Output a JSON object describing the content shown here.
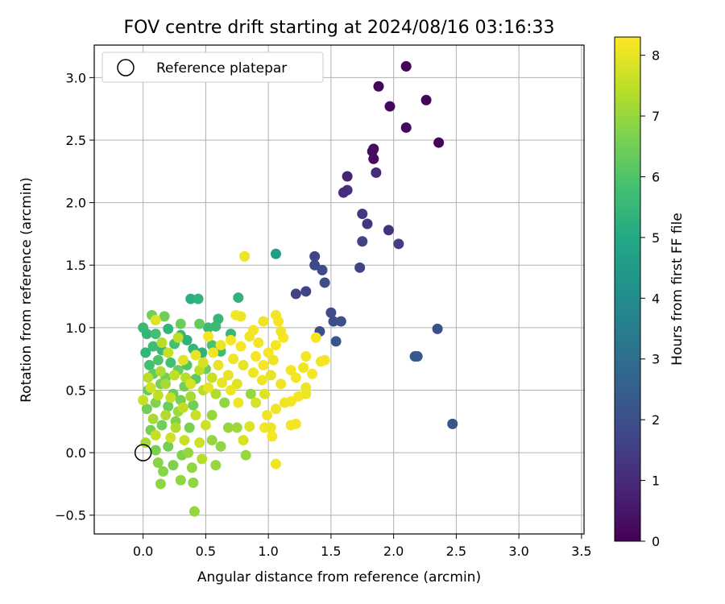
{
  "chart_data": {
    "type": "scatter",
    "title": "FOV centre drift starting at 2024/08/16 03:16:33",
    "xlabel": "Angular distance from reference (arcmin)",
    "ylabel": "Rotation from reference (arcmin)",
    "xlim": [
      -0.39,
      3.52
    ],
    "ylim": [
      -0.65,
      3.26
    ],
    "xticks": [
      0.0,
      0.5,
      1.0,
      1.5,
      2.0,
      2.5,
      3.0,
      3.5
    ],
    "xtick_labels": [
      "0.0",
      "0.5",
      "1.0",
      "1.5",
      "2.0",
      "2.5",
      "3.0",
      "3.5"
    ],
    "yticks": [
      -0.5,
      0.0,
      0.5,
      1.0,
      1.5,
      2.0,
      2.5,
      3.0
    ],
    "ytick_labels": [
      "−0.5",
      "0.0",
      "0.5",
      "1.0",
      "1.5",
      "2.0",
      "2.5",
      "3.0"
    ],
    "grid": true,
    "legend": {
      "position": "top-left",
      "entries": [
        "Reference platepar"
      ]
    },
    "reference_point": {
      "x": 0.0,
      "y": 0.0,
      "marker": "open-circle"
    },
    "colorbar": {
      "label": "Hours from first FF file",
      "range": [
        0,
        8.3
      ],
      "ticks": [
        0,
        1,
        2,
        3,
        4,
        5,
        6,
        7,
        8
      ],
      "tick_labels": [
        "0",
        "1",
        "2",
        "3",
        "4",
        "5",
        "6",
        "7",
        "8"
      ],
      "colormap": "viridis",
      "stops": [
        "#440154",
        "#482475",
        "#414487",
        "#355f8d",
        "#2a788e",
        "#21918c",
        "#22a884",
        "#44bf70",
        "#7ad151",
        "#bddf26",
        "#fde725"
      ]
    },
    "points": [
      {
        "x": 2.1,
        "y": 3.09,
        "c": 0.1
      },
      {
        "x": 1.88,
        "y": 2.93,
        "c": 0.15
      },
      {
        "x": 1.97,
        "y": 2.77,
        "c": 0.2
      },
      {
        "x": 2.26,
        "y": 2.82,
        "c": 0.1
      },
      {
        "x": 2.1,
        "y": 2.6,
        "c": 0.2
      },
      {
        "x": 2.36,
        "y": 2.48,
        "c": 0.1
      },
      {
        "x": 1.84,
        "y": 2.43,
        "c": 0.25
      },
      {
        "x": 1.83,
        "y": 2.41,
        "c": 0.3
      },
      {
        "x": 1.84,
        "y": 2.35,
        "c": 0.3
      },
      {
        "x": 1.63,
        "y": 2.21,
        "c": 0.8
      },
      {
        "x": 1.86,
        "y": 2.24,
        "c": 1.0
      },
      {
        "x": 1.63,
        "y": 2.1,
        "c": 1.2
      },
      {
        "x": 1.6,
        "y": 2.08,
        "c": 1.1
      },
      {
        "x": 1.75,
        "y": 1.91,
        "c": 1.3
      },
      {
        "x": 1.79,
        "y": 1.83,
        "c": 1.3
      },
      {
        "x": 1.96,
        "y": 1.78,
        "c": 1.2
      },
      {
        "x": 1.75,
        "y": 1.69,
        "c": 1.6
      },
      {
        "x": 2.04,
        "y": 1.67,
        "c": 1.5
      },
      {
        "x": 1.37,
        "y": 1.57,
        "c": 1.7
      },
      {
        "x": 1.37,
        "y": 1.5,
        "c": 1.8
      },
      {
        "x": 1.73,
        "y": 1.48,
        "c": 1.6
      },
      {
        "x": 1.43,
        "y": 1.46,
        "c": 1.9
      },
      {
        "x": 1.45,
        "y": 1.36,
        "c": 1.9
      },
      {
        "x": 1.3,
        "y": 1.29,
        "c": 1.7
      },
      {
        "x": 1.22,
        "y": 1.27,
        "c": 1.6
      },
      {
        "x": 1.5,
        "y": 1.12,
        "c": 1.9
      },
      {
        "x": 1.52,
        "y": 1.05,
        "c": 2.0
      },
      {
        "x": 1.58,
        "y": 1.05,
        "c": 2.0
      },
      {
        "x": 1.41,
        "y": 0.97,
        "c": 2.0
      },
      {
        "x": 2.35,
        "y": 0.99,
        "c": 2.0
      },
      {
        "x": 1.54,
        "y": 0.89,
        "c": 2.2
      },
      {
        "x": 2.17,
        "y": 0.77,
        "c": 2.3
      },
      {
        "x": 2.19,
        "y": 0.77,
        "c": 2.3
      },
      {
        "x": 2.47,
        "y": 0.23,
        "c": 2.2
      },
      {
        "x": 1.06,
        "y": 1.59,
        "c": 4.6
      },
      {
        "x": 0.76,
        "y": 1.24,
        "c": 5.3
      },
      {
        "x": 0.38,
        "y": 1.23,
        "c": 5.2
      },
      {
        "x": 0.44,
        "y": 1.23,
        "c": 5.4
      },
      {
        "x": 0.6,
        "y": 1.07,
        "c": 5.5
      },
      {
        "x": 0.58,
        "y": 1.01,
        "c": 5.6
      },
      {
        "x": 0.52,
        "y": 1.0,
        "c": 5.6
      },
      {
        "x": 0.0,
        "y": 1.0,
        "c": 5.6
      },
      {
        "x": 0.03,
        "y": 0.95,
        "c": 5.4
      },
      {
        "x": 0.1,
        "y": 0.95,
        "c": 5.8
      },
      {
        "x": 0.2,
        "y": 0.99,
        "c": 5.4
      },
      {
        "x": 0.3,
        "y": 0.94,
        "c": 5.5
      },
      {
        "x": 0.35,
        "y": 0.9,
        "c": 5.3
      },
      {
        "x": 0.02,
        "y": 0.8,
        "c": 5.4
      },
      {
        "x": 0.08,
        "y": 0.85,
        "c": 5.7
      },
      {
        "x": 0.15,
        "y": 0.82,
        "c": 5.6
      },
      {
        "x": 0.25,
        "y": 0.87,
        "c": 5.8
      },
      {
        "x": 0.4,
        "y": 0.83,
        "c": 5.5
      },
      {
        "x": 0.47,
        "y": 0.8,
        "c": 5.3
      },
      {
        "x": 0.55,
        "y": 0.86,
        "c": 5.9
      },
      {
        "x": 0.62,
        "y": 0.81,
        "c": 5.7
      },
      {
        "x": 0.7,
        "y": 0.95,
        "c": 5.5
      },
      {
        "x": 0.05,
        "y": 0.7,
        "c": 5.8
      },
      {
        "x": 0.12,
        "y": 0.74,
        "c": 6.0
      },
      {
        "x": 0.22,
        "y": 0.72,
        "c": 5.8
      },
      {
        "x": 0.35,
        "y": 0.7,
        "c": 6.0
      },
      {
        "x": 0.07,
        "y": 1.1,
        "c": 6.5
      },
      {
        "x": 0.17,
        "y": 1.09,
        "c": 6.5
      },
      {
        "x": 0.3,
        "y": 1.03,
        "c": 6.4
      },
      {
        "x": 0.45,
        "y": 1.03,
        "c": 6.3
      },
      {
        "x": 0.08,
        "y": 0.63,
        "c": 6.3
      },
      {
        "x": 0.18,
        "y": 0.6,
        "c": 6.5
      },
      {
        "x": 0.28,
        "y": 0.66,
        "c": 6.4
      },
      {
        "x": 0.42,
        "y": 0.59,
        "c": 6.2
      },
      {
        "x": 0.5,
        "y": 0.67,
        "c": 6.4
      },
      {
        "x": 0.04,
        "y": 0.5,
        "c": 6.3
      },
      {
        "x": 0.14,
        "y": 0.55,
        "c": 6.6
      },
      {
        "x": 0.24,
        "y": 0.47,
        "c": 6.4
      },
      {
        "x": 0.33,
        "y": 0.53,
        "c": 6.5
      },
      {
        "x": 0.03,
        "y": 0.35,
        "c": 6.5
      },
      {
        "x": 0.1,
        "y": 0.4,
        "c": 6.7
      },
      {
        "x": 0.2,
        "y": 0.37,
        "c": 6.4
      },
      {
        "x": 0.3,
        "y": 0.42,
        "c": 6.6
      },
      {
        "x": 0.4,
        "y": 0.38,
        "c": 6.5
      },
      {
        "x": 0.06,
        "y": 0.18,
        "c": 6.6
      },
      {
        "x": 0.15,
        "y": 0.22,
        "c": 6.5
      },
      {
        "x": 0.26,
        "y": 0.25,
        "c": 6.7
      },
      {
        "x": 0.37,
        "y": 0.2,
        "c": 6.6
      },
      {
        "x": 0.1,
        "y": 0.02,
        "c": 6.6
      },
      {
        "x": 0.2,
        "y": 0.05,
        "c": 6.5
      },
      {
        "x": 0.31,
        "y": -0.02,
        "c": 6.7
      },
      {
        "x": 0.12,
        "y": -0.08,
        "c": 6.8
      },
      {
        "x": 0.24,
        "y": -0.1,
        "c": 6.7
      },
      {
        "x": 0.16,
        "y": -0.15,
        "c": 6.8
      },
      {
        "x": 0.39,
        "y": -0.12,
        "c": 6.9
      },
      {
        "x": 0.14,
        "y": -0.25,
        "c": 6.9
      },
      {
        "x": 0.3,
        "y": -0.22,
        "c": 6.9
      },
      {
        "x": 0.4,
        "y": -0.24,
        "c": 6.9
      },
      {
        "x": 0.41,
        "y": -0.47,
        "c": 7.0
      },
      {
        "x": 0.58,
        "y": -0.1,
        "c": 7.0
      },
      {
        "x": 0.82,
        "y": -0.02,
        "c": 7.0
      },
      {
        "x": 0.55,
        "y": 0.1,
        "c": 7.0
      },
      {
        "x": 0.62,
        "y": 0.05,
        "c": 6.9
      },
      {
        "x": 0.68,
        "y": 0.2,
        "c": 7.0
      },
      {
        "x": 0.75,
        "y": 0.2,
        "c": 7.1
      },
      {
        "x": 0.65,
        "y": 0.4,
        "c": 6.9
      },
      {
        "x": 0.86,
        "y": 0.47,
        "c": 7.0
      },
      {
        "x": 0.55,
        "y": 0.3,
        "c": 7.0
      },
      {
        "x": 0.02,
        "y": 0.08,
        "c": 7.2
      },
      {
        "x": 0.08,
        "y": 0.27,
        "c": 7.2
      },
      {
        "x": 0.18,
        "y": 0.3,
        "c": 7.3
      },
      {
        "x": 0.28,
        "y": 0.33,
        "c": 7.1
      },
      {
        "x": 0.38,
        "y": 0.45,
        "c": 7.2
      },
      {
        "x": 0.48,
        "y": 0.5,
        "c": 7.4
      },
      {
        "x": 0.58,
        "y": 0.47,
        "c": 7.3
      },
      {
        "x": 0.04,
        "y": 0.6,
        "c": 7.4
      },
      {
        "x": 0.14,
        "y": 0.65,
        "c": 7.3
      },
      {
        "x": 0.25,
        "y": 0.62,
        "c": 7.5
      },
      {
        "x": 0.34,
        "y": 0.6,
        "c": 7.4
      },
      {
        "x": 0.45,
        "y": 0.66,
        "c": 7.5
      },
      {
        "x": 0.55,
        "y": 0.6,
        "c": 7.6
      },
      {
        "x": 0.12,
        "y": 0.46,
        "c": 7.5
      },
      {
        "x": 0.22,
        "y": 0.44,
        "c": 7.6
      },
      {
        "x": 0.32,
        "y": 0.36,
        "c": 7.5
      },
      {
        "x": 0.42,
        "y": 0.3,
        "c": 7.6
      },
      {
        "x": 0.5,
        "y": 0.22,
        "c": 7.7
      },
      {
        "x": 0.1,
        "y": 0.14,
        "c": 7.6
      },
      {
        "x": 0.22,
        "y": 0.12,
        "c": 7.7
      },
      {
        "x": 0.33,
        "y": 0.1,
        "c": 7.6
      },
      {
        "x": 0.45,
        "y": 0.08,
        "c": 7.7
      },
      {
        "x": 0.8,
        "y": 0.1,
        "c": 7.8
      },
      {
        "x": 0.85,
        "y": 0.21,
        "c": 7.9
      },
      {
        "x": 0.9,
        "y": 0.4,
        "c": 7.8
      },
      {
        "x": 0.97,
        "y": 0.47,
        "c": 7.9
      },
      {
        "x": 0.75,
        "y": 0.55,
        "c": 7.9
      },
      {
        "x": 0.68,
        "y": 0.62,
        "c": 8.0
      },
      {
        "x": 0.6,
        "y": 0.7,
        "c": 8.0
      },
      {
        "x": 0.72,
        "y": 0.75,
        "c": 8.1
      },
      {
        "x": 0.8,
        "y": 0.7,
        "c": 8.0
      },
      {
        "x": 0.88,
        "y": 0.64,
        "c": 8.1
      },
      {
        "x": 0.95,
        "y": 0.58,
        "c": 8.1
      },
      {
        "x": 1.02,
        "y": 0.62,
        "c": 8.0
      },
      {
        "x": 1.1,
        "y": 0.55,
        "c": 8.1
      },
      {
        "x": 0.62,
        "y": 0.86,
        "c": 8.1
      },
      {
        "x": 0.7,
        "y": 0.9,
        "c": 8.2
      },
      {
        "x": 0.78,
        "y": 0.85,
        "c": 8.2
      },
      {
        "x": 0.85,
        "y": 0.93,
        "c": 8.1
      },
      {
        "x": 0.92,
        "y": 0.88,
        "c": 8.2
      },
      {
        "x": 1.0,
        "y": 0.8,
        "c": 8.2
      },
      {
        "x": 1.06,
        "y": 0.86,
        "c": 8.2
      },
      {
        "x": 1.12,
        "y": 0.92,
        "c": 8.2
      },
      {
        "x": 0.52,
        "y": 0.93,
        "c": 8.2
      },
      {
        "x": 0.56,
        "y": 0.8,
        "c": 8.1
      },
      {
        "x": 0.9,
        "y": 0.77,
        "c": 8.2
      },
      {
        "x": 0.96,
        "y": 0.7,
        "c": 8.2
      },
      {
        "x": 1.04,
        "y": 0.74,
        "c": 8.1
      },
      {
        "x": 1.18,
        "y": 0.66,
        "c": 8.2
      },
      {
        "x": 1.22,
        "y": 0.6,
        "c": 8.2
      },
      {
        "x": 1.28,
        "y": 0.68,
        "c": 8.1
      },
      {
        "x": 1.35,
        "y": 0.63,
        "c": 8.2
      },
      {
        "x": 1.3,
        "y": 0.77,
        "c": 8.2
      },
      {
        "x": 1.38,
        "y": 0.92,
        "c": 8.2
      },
      {
        "x": 1.42,
        "y": 0.73,
        "c": 8.1
      },
      {
        "x": 1.45,
        "y": 0.74,
        "c": 8.2
      },
      {
        "x": 1.08,
        "y": 1.05,
        "c": 8.2
      },
      {
        "x": 1.06,
        "y": 1.1,
        "c": 8.2
      },
      {
        "x": 1.1,
        "y": 0.97,
        "c": 8.1
      },
      {
        "x": 0.96,
        "y": 1.05,
        "c": 8.1
      },
      {
        "x": 0.88,
        "y": 0.98,
        "c": 8.2
      },
      {
        "x": 0.74,
        "y": 1.1,
        "c": 8.2
      },
      {
        "x": 0.78,
        "y": 1.09,
        "c": 8.1
      },
      {
        "x": 0.81,
        "y": 1.57,
        "c": 8.1
      },
      {
        "x": 1.3,
        "y": 0.52,
        "c": 8.1
      },
      {
        "x": 1.24,
        "y": 0.45,
        "c": 8.2
      },
      {
        "x": 1.18,
        "y": 0.41,
        "c": 8.2
      },
      {
        "x": 1.3,
        "y": 0.47,
        "c": 8.1
      },
      {
        "x": 1.13,
        "y": 0.4,
        "c": 8.1
      },
      {
        "x": 1.22,
        "y": 0.23,
        "c": 8.2
      },
      {
        "x": 1.18,
        "y": 0.22,
        "c": 8.2
      },
      {
        "x": 1.06,
        "y": 0.35,
        "c": 8.1
      },
      {
        "x": 0.99,
        "y": 0.3,
        "c": 8.1
      },
      {
        "x": 0.97,
        "y": 0.2,
        "c": 8.2
      },
      {
        "x": 1.02,
        "y": 0.2,
        "c": 8.1
      },
      {
        "x": 1.03,
        "y": 0.13,
        "c": 8.2
      },
      {
        "x": 1.06,
        "y": -0.09,
        "c": 8.1
      },
      {
        "x": 0.76,
        "y": 0.4,
        "c": 8.1
      },
      {
        "x": 0.7,
        "y": 0.5,
        "c": 8.1
      },
      {
        "x": 0.63,
        "y": 0.56,
        "c": 8.0
      },
      {
        "x": 0.52,
        "y": 0.52,
        "c": 8.0
      },
      {
        "x": 0.32,
        "y": 0.74,
        "c": 7.9
      },
      {
        "x": 0.42,
        "y": 0.78,
        "c": 8.0
      },
      {
        "x": 0.48,
        "y": 0.72,
        "c": 7.8
      },
      {
        "x": 0.38,
        "y": 0.55,
        "c": 7.8
      },
      {
        "x": 0.2,
        "y": 0.8,
        "c": 7.6
      },
      {
        "x": 0.15,
        "y": 0.88,
        "c": 7.4
      },
      {
        "x": 0.1,
        "y": 1.06,
        "c": 7.9
      },
      {
        "x": 0.28,
        "y": 0.92,
        "c": 7.5
      },
      {
        "x": 0.18,
        "y": 0.55,
        "c": 7.2
      },
      {
        "x": 0.26,
        "y": 0.2,
        "c": 7.3
      },
      {
        "x": 0.36,
        "y": 0.0,
        "c": 7.0
      },
      {
        "x": 0.47,
        "y": -0.05,
        "c": 7.4
      },
      {
        "x": 0.0,
        "y": 0.42,
        "c": 7.6
      },
      {
        "x": 0.06,
        "y": 0.52,
        "c": 7.7
      }
    ]
  }
}
